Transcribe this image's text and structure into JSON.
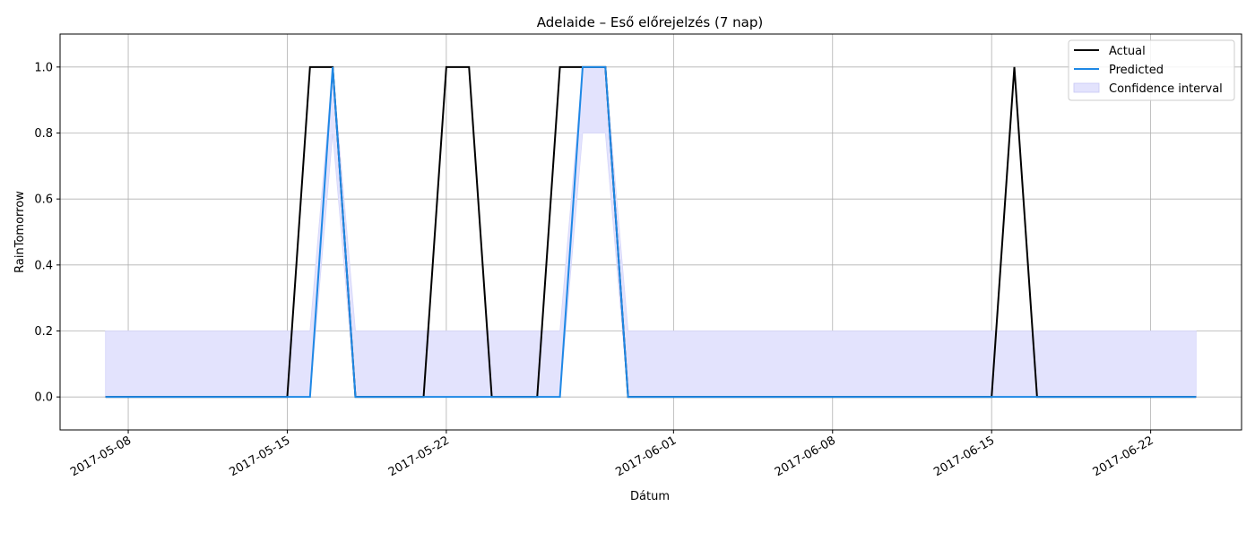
{
  "chart_data": {
    "type": "line",
    "title": "Adelaide – Eső előrejelzés (7 nap)",
    "xlabel": "Dátum",
    "ylabel": "RainTomorrow",
    "xlim": [
      "2017-05-05",
      "2017-06-26"
    ],
    "ylim": [
      -0.1,
      1.1
    ],
    "grid": true,
    "legend_position": "top-right",
    "x_ticks": [
      "2017-05-08",
      "2017-05-15",
      "2017-05-22",
      "2017-06-01",
      "2017-06-08",
      "2017-06-15",
      "2017-06-22"
    ],
    "y_ticks": [
      "0.0",
      "0.2",
      "0.4",
      "0.6",
      "0.8",
      "1.0"
    ],
    "x": [
      "2017-05-07",
      "2017-05-08",
      "2017-05-09",
      "2017-05-10",
      "2017-05-11",
      "2017-05-12",
      "2017-05-13",
      "2017-05-14",
      "2017-05-15",
      "2017-05-16",
      "2017-05-17",
      "2017-05-18",
      "2017-05-19",
      "2017-05-20",
      "2017-05-21",
      "2017-05-22",
      "2017-05-23",
      "2017-05-24",
      "2017-05-25",
      "2017-05-26",
      "2017-05-27",
      "2017-05-28",
      "2017-05-29",
      "2017-05-30",
      "2017-05-31",
      "2017-06-01",
      "2017-06-02",
      "2017-06-03",
      "2017-06-04",
      "2017-06-05",
      "2017-06-06",
      "2017-06-07",
      "2017-06-08",
      "2017-06-09",
      "2017-06-10",
      "2017-06-11",
      "2017-06-12",
      "2017-06-13",
      "2017-06-14",
      "2017-06-15",
      "2017-06-16",
      "2017-06-17",
      "2017-06-18",
      "2017-06-19",
      "2017-06-20",
      "2017-06-21",
      "2017-06-22",
      "2017-06-23",
      "2017-06-24"
    ],
    "series": [
      {
        "name": "Actual",
        "color": "#000000",
        "values": [
          0,
          0,
          0,
          0,
          0,
          0,
          0,
          0,
          0,
          1,
          1,
          0,
          0,
          0,
          0,
          1,
          1,
          0,
          0,
          0,
          1,
          1,
          1,
          0,
          0,
          0,
          0,
          0,
          0,
          0,
          0,
          0,
          0,
          0,
          0,
          0,
          0,
          0,
          0,
          0,
          1,
          0,
          0,
          0,
          0,
          0,
          0,
          0,
          0
        ]
      },
      {
        "name": "Predicted",
        "color": "#1e88e5",
        "values": [
          0,
          0,
          0,
          0,
          0,
          0,
          0,
          0,
          0,
          0,
          1,
          0,
          0,
          0,
          0,
          0,
          0,
          0,
          0,
          0,
          0,
          1,
          1,
          0,
          0,
          0,
          0,
          0,
          0,
          0,
          0,
          0,
          0,
          0,
          0,
          0,
          0,
          0,
          0,
          0,
          0,
          0,
          0,
          0,
          0,
          0,
          0,
          0,
          0
        ]
      }
    ],
    "confidence_interval": {
      "name": "Confidence interval",
      "color": "#e3e3fd",
      "lower": [
        0,
        0,
        0,
        0,
        0,
        0,
        0,
        0,
        0,
        0,
        0.8,
        0,
        0,
        0,
        0,
        0,
        0,
        0,
        0,
        0,
        0,
        0.8,
        0.8,
        0,
        0,
        0,
        0,
        0,
        0,
        0,
        0,
        0,
        0,
        0,
        0,
        0,
        0,
        0,
        0,
        0,
        0,
        0,
        0,
        0,
        0,
        0,
        0,
        0,
        0
      ],
      "upper": [
        0.2,
        0.2,
        0.2,
        0.2,
        0.2,
        0.2,
        0.2,
        0.2,
        0.2,
        0.2,
        1,
        0.2,
        0.2,
        0.2,
        0.2,
        0.2,
        0.2,
        0.2,
        0.2,
        0.2,
        0.2,
        1,
        1,
        0.2,
        0.2,
        0.2,
        0.2,
        0.2,
        0.2,
        0.2,
        0.2,
        0.2,
        0.2,
        0.2,
        0.2,
        0.2,
        0.2,
        0.2,
        0.2,
        0.2,
        0.2,
        0.2,
        0.2,
        0.2,
        0.2,
        0.2,
        0.2,
        0.2,
        0.2
      ]
    }
  }
}
